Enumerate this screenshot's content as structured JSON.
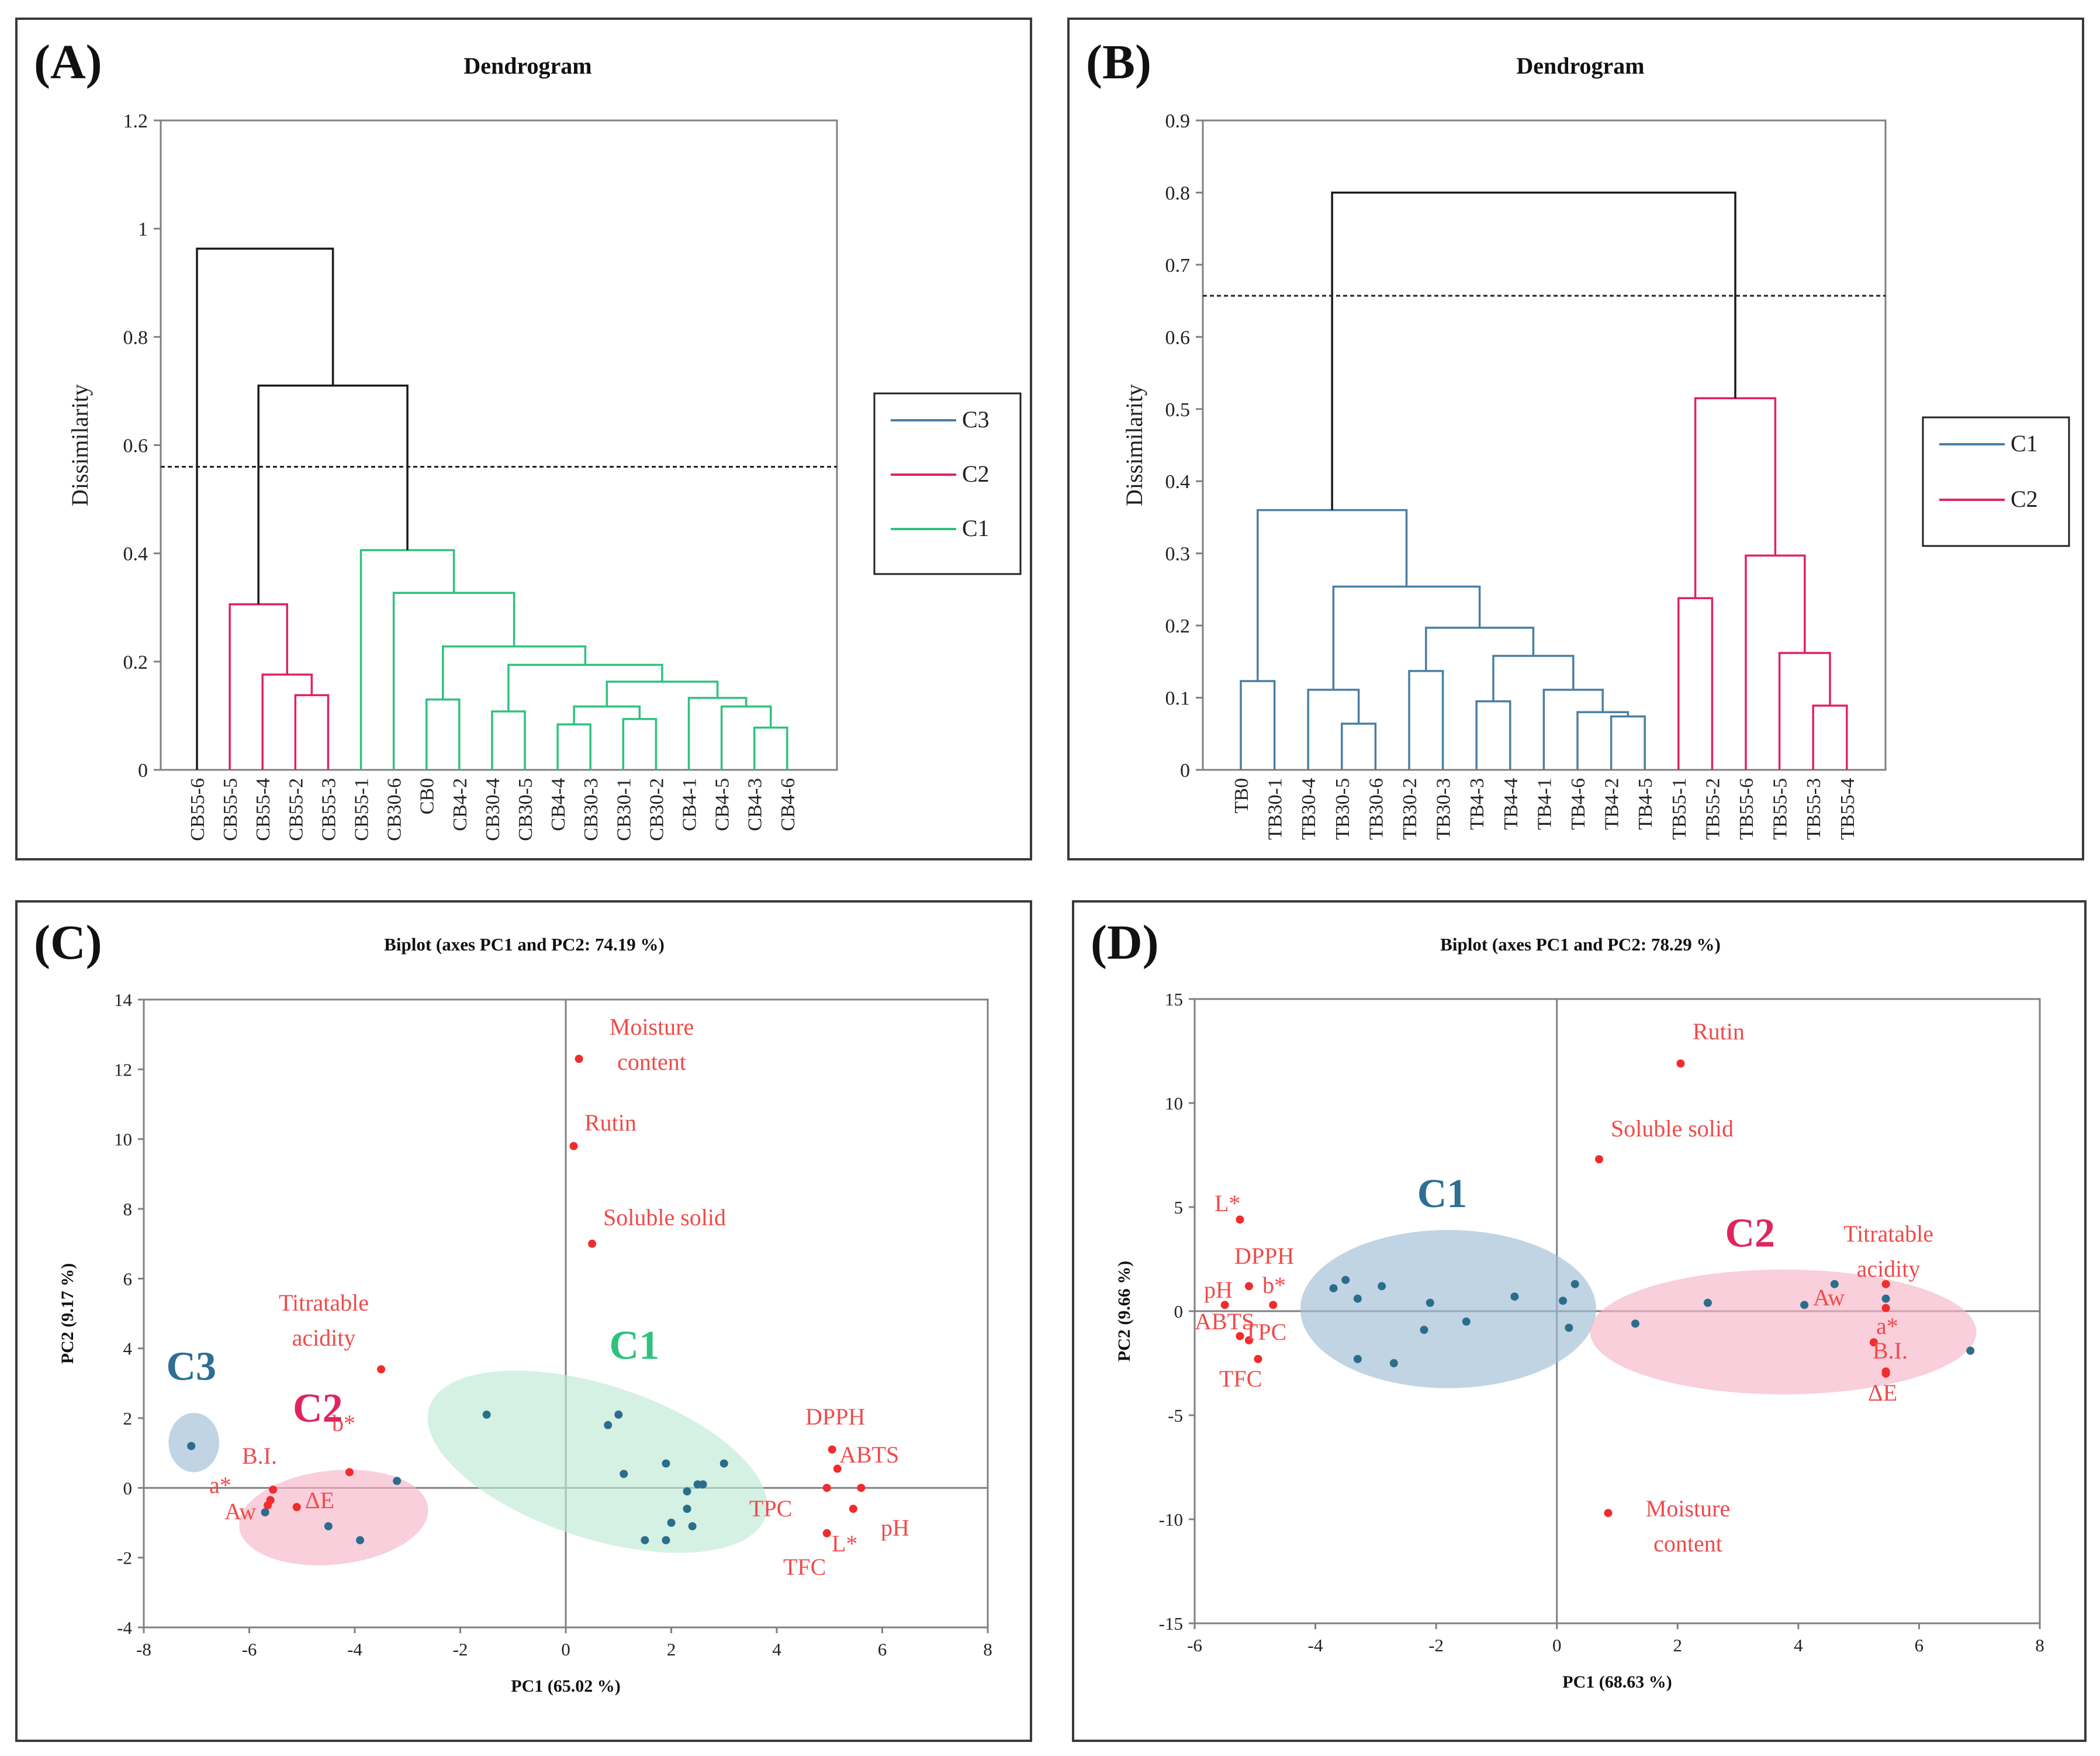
{
  "colors": {
    "axis": "#808080",
    "black": "#1a1a1a",
    "blue_cluster": "#4a7fa3",
    "pink_cluster": "#e0245e",
    "green_cluster": "#2ec27e",
    "point_obs": "#2a6e8c",
    "point_var": "#f02c2c",
    "var_label": "#f04a4a",
    "ellipse_blue": "#9fbdd4",
    "ellipse_pink": "#f4b6c7",
    "ellipse_green": "#bfe9d4",
    "label_C1_green": "#2ec27e",
    "label_C1_blue": "#2e6f93",
    "label_C2": "#e0245e",
    "label_C3": "#2e6f93"
  },
  "chart_data": [
    {
      "id": "A",
      "panel_label": "(A)",
      "type": "dendrogram",
      "title": "Dendrogram",
      "ylabel": "Dissimilarity",
      "ylim": [
        0,
        1.2
      ],
      "yticks": [
        "0",
        "0.2",
        "0.4",
        "0.6",
        "0.8",
        "1",
        "1.2"
      ],
      "ytick_values": [
        0,
        0.2,
        0.4,
        0.6,
        0.8,
        1.0,
        1.2
      ],
      "cut_height": 0.56,
      "leaves": [
        "CB55-6",
        "CB55-5",
        "CB55-4",
        "CB55-2",
        "CB55-3",
        "CB55-1",
        "CB30-6",
        "CB0",
        "CB4-2",
        "CB30-4",
        "CB30-5",
        "CB4-4",
        "CB30-3",
        "CB30-1",
        "CB30-2",
        "CB4-1",
        "CB4-5",
        "CB4-3",
        "CB4-6"
      ],
      "merges": [
        {
          "a": 17,
          "b": 18,
          "h": 0.078,
          "c": "green"
        },
        {
          "a": 16,
          "b": 19,
          "h": 0.117,
          "c": "green"
        },
        {
          "a": 15,
          "b": 20,
          "h": 0.133,
          "c": "green"
        },
        {
          "a": 13,
          "b": 14,
          "h": 0.094,
          "c": "green"
        },
        {
          "a": 11,
          "b": 12,
          "h": 0.084,
          "c": "green"
        },
        {
          "a": 23,
          "b": 22,
          "h": 0.117,
          "c": "green"
        },
        {
          "a": 24,
          "b": 21,
          "h": 0.163,
          "c": "green"
        },
        {
          "a": 9,
          "b": 10,
          "h": 0.108,
          "c": "green"
        },
        {
          "a": 26,
          "b": 25,
          "h": 0.194,
          "c": "green"
        },
        {
          "a": 7,
          "b": 8,
          "h": 0.13,
          "c": "green"
        },
        {
          "a": 28,
          "b": 27,
          "h": 0.228,
          "c": "green"
        },
        {
          "a": 6,
          "b": 29,
          "h": 0.327,
          "c": "green"
        },
        {
          "a": 5,
          "b": 30,
          "h": 0.406,
          "c": "green"
        },
        {
          "a": 3,
          "b": 4,
          "h": 0.138,
          "c": "pink"
        },
        {
          "a": 2,
          "b": 32,
          "h": 0.176,
          "c": "pink"
        },
        {
          "a": 1,
          "b": 33,
          "h": 0.306,
          "c": "pink"
        },
        {
          "a": 34,
          "b": 31,
          "h": 0.71,
          "c": "black"
        },
        {
          "a": 0,
          "b": 35,
          "h": 0.963,
          "c": "black"
        }
      ],
      "legend": [
        {
          "label": "C3",
          "color": "blue"
        },
        {
          "label": "C2",
          "color": "pink"
        },
        {
          "label": "C1",
          "color": "green"
        }
      ]
    },
    {
      "id": "B",
      "panel_label": "(B)",
      "type": "dendrogram",
      "title": "Dendrogram",
      "ylabel": "Dissimilarity",
      "ylim": [
        0,
        0.9
      ],
      "yticks": [
        "0",
        "0.1",
        "0.2",
        "0.3",
        "0.4",
        "0.5",
        "0.6",
        "0.7",
        "0.8",
        "0.9"
      ],
      "ytick_values": [
        0,
        0.1,
        0.2,
        0.3,
        0.4,
        0.5,
        0.6,
        0.7,
        0.8,
        0.9
      ],
      "cut_height": 0.657,
      "leaves": [
        "TB0",
        "TB30-1",
        "TB30-4",
        "TB30-5",
        "TB30-6",
        "TB30-2",
        "TB30-3",
        "TB4-3",
        "TB4-4",
        "TB4-1",
        "TB4-6",
        "TB4-2",
        "TB4-5",
        "TB55-1",
        "TB55-2",
        "TB55-6",
        "TB55-5",
        "TB55-3",
        "TB55-4"
      ],
      "merges": [
        {
          "a": 0,
          "b": 1,
          "h": 0.123,
          "c": "blue"
        },
        {
          "a": 3,
          "b": 4,
          "h": 0.064,
          "c": "blue"
        },
        {
          "a": 2,
          "b": 20,
          "h": 0.111,
          "c": "blue"
        },
        {
          "a": 5,
          "b": 6,
          "h": 0.137,
          "c": "blue"
        },
        {
          "a": 7,
          "b": 8,
          "h": 0.095,
          "c": "blue"
        },
        {
          "a": 11,
          "b": 12,
          "h": 0.074,
          "c": "blue"
        },
        {
          "a": 10,
          "b": 24,
          "h": 0.08,
          "c": "blue"
        },
        {
          "a": 9,
          "b": 25,
          "h": 0.111,
          "c": "blue"
        },
        {
          "a": 23,
          "b": 26,
          "h": 0.158,
          "c": "blue"
        },
        {
          "a": 22,
          "b": 27,
          "h": 0.197,
          "c": "blue"
        },
        {
          "a": 21,
          "b": 28,
          "h": 0.254,
          "c": "blue"
        },
        {
          "a": 19,
          "b": 29,
          "h": 0.36,
          "c": "blue"
        },
        {
          "a": 17,
          "b": 18,
          "h": 0.089,
          "c": "pink"
        },
        {
          "a": 16,
          "b": 31,
          "h": 0.162,
          "c": "pink"
        },
        {
          "a": 15,
          "b": 32,
          "h": 0.297,
          "c": "pink"
        },
        {
          "a": 13,
          "b": 14,
          "h": 0.238,
          "c": "pink"
        },
        {
          "a": 34,
          "b": 33,
          "h": 0.515,
          "c": "pink"
        },
        {
          "a": 30,
          "b": 35,
          "h": 0.8,
          "c": "black"
        }
      ],
      "legend": [
        {
          "label": "C1",
          "color": "blue"
        },
        {
          "label": "C2",
          "color": "pink"
        }
      ]
    },
    {
      "id": "C",
      "panel_label": "(C)",
      "type": "scatter",
      "title": "Biplot (axes PC1 and PC2: 74.19 %)",
      "xlabel": "PC1 (65.02 %)",
      "ylabel": "PC2 (9.17 %)",
      "xlim": [
        -8,
        8
      ],
      "ylim": [
        -4,
        14
      ],
      "xticks": [
        "-8",
        "-6",
        "-4",
        "-2",
        "0",
        "2",
        "4",
        "6",
        "8"
      ],
      "xtick_values": [
        -8,
        -6,
        -4,
        -2,
        0,
        2,
        4,
        6,
        8
      ],
      "yticks": [
        "-4",
        "-2",
        "0",
        "2",
        "4",
        "6",
        "8",
        "10",
        "12",
        "14"
      ],
      "ytick_values": [
        -4,
        -2,
        0,
        2,
        4,
        6,
        8,
        10,
        12,
        14
      ],
      "observations": [
        [
          -7.1,
          1.2
        ],
        [
          -5.7,
          -0.7
        ],
        [
          -4.5,
          -1.1
        ],
        [
          -3.9,
          -1.5
        ],
        [
          -3.2,
          0.2
        ],
        [
          -1.5,
          2.1
        ],
        [
          0.8,
          1.8
        ],
        [
          1.0,
          2.1
        ],
        [
          1.1,
          0.4
        ],
        [
          1.9,
          0.7
        ],
        [
          2.0,
          -1.0
        ],
        [
          2.3,
          -0.1
        ],
        [
          2.3,
          -0.6
        ],
        [
          2.4,
          -1.1
        ],
        [
          2.5,
          0.1
        ],
        [
          2.6,
          0.1
        ],
        [
          1.5,
          -1.5
        ],
        [
          1.9,
          -1.5
        ],
        [
          3.0,
          0.7
        ]
      ],
      "variables": [
        {
          "name": "Moisture content",
          "x": 0.25,
          "y": 12.3
        },
        {
          "name": "Rutin",
          "x": 0.15,
          "y": 9.8
        },
        {
          "name": "Soluble solid",
          "x": 0.5,
          "y": 7.0
        },
        {
          "name": "Titratable acidity",
          "x": -3.5,
          "y": 3.4
        },
        {
          "name": "b*",
          "x": -4.1,
          "y": 0.45
        },
        {
          "name": "B.I.",
          "x": -5.55,
          "y": -0.05
        },
        {
          "name": "a*",
          "x": -5.65,
          "y": -0.5
        },
        {
          "name": "Aw",
          "x": -5.6,
          "y": -0.35
        },
        {
          "name": "ΔE",
          "x": -5.1,
          "y": -0.55
        },
        {
          "name": "DPPH",
          "x": 5.05,
          "y": 1.1
        },
        {
          "name": "ABTS",
          "x": 5.15,
          "y": 0.55
        },
        {
          "name": "TPC",
          "x": 4.95,
          "y": 0.0
        },
        {
          "name": "pH",
          "x": 5.6,
          "y": 0.0
        },
        {
          "name": "L*",
          "x": 5.45,
          "y": -0.6
        },
        {
          "name": "TFC",
          "x": 4.95,
          "y": -1.3
        }
      ],
      "clusters": [
        {
          "label": "C1",
          "x": 1.3,
          "y": 3.7,
          "color": "green"
        },
        {
          "label": "C2",
          "x": -4.7,
          "y": 1.9,
          "color": "pink"
        },
        {
          "label": "C3",
          "x": -7.1,
          "y": 3.1,
          "color": "blue"
        }
      ]
    },
    {
      "id": "D",
      "panel_label": "(D)",
      "type": "scatter",
      "title": "Biplot (axes PC1 and PC2: 78.29 %)",
      "xlabel": "PC1 (68.63 %)",
      "ylabel": "PC2 (9.66 %)",
      "xlim": [
        -6,
        8
      ],
      "ylim": [
        -15,
        15
      ],
      "xticks": [
        "-6",
        "-4",
        "-2",
        "0",
        "2",
        "4",
        "6",
        "8"
      ],
      "xtick_values": [
        -6,
        -4,
        -2,
        0,
        2,
        4,
        6,
        8
      ],
      "yticks": [
        "-15",
        "-10",
        "-5",
        "0",
        "5",
        "10",
        "15"
      ],
      "ytick_values": [
        -15,
        -10,
        -5,
        0,
        5,
        10,
        15
      ],
      "observations": [
        [
          -3.7,
          1.1
        ],
        [
          -3.5,
          1.5
        ],
        [
          -3.3,
          0.6
        ],
        [
          -2.9,
          1.2
        ],
        [
          -3.3,
          -2.3
        ],
        [
          -2.7,
          -2.5
        ],
        [
          -2.2,
          -0.9
        ],
        [
          -2.1,
          0.4
        ],
        [
          -1.5,
          -0.5
        ],
        [
          -0.7,
          0.7
        ],
        [
          0.1,
          0.5
        ],
        [
          0.2,
          -0.8
        ],
        [
          0.3,
          1.3
        ],
        [
          1.3,
          -0.6
        ],
        [
          2.5,
          0.4
        ],
        [
          4.1,
          0.3
        ],
        [
          4.6,
          1.3
        ],
        [
          5.45,
          0.6
        ],
        [
          6.85,
          -1.9
        ]
      ],
      "variables": [
        {
          "name": "Rutin",
          "x": 2.05,
          "y": 11.9
        },
        {
          "name": "Soluble solid",
          "x": 0.7,
          "y": 7.3
        },
        {
          "name": "L*",
          "x": -5.25,
          "y": 4.4
        },
        {
          "name": "DPPH",
          "x": -5.1,
          "y": 1.2
        },
        {
          "name": "pH",
          "x": -5.5,
          "y": 0.3
        },
        {
          "name": "b*",
          "x": -4.7,
          "y": 0.3
        },
        {
          "name": "ABTS",
          "x": -5.25,
          "y": -1.2
        },
        {
          "name": "TPC",
          "x": -5.1,
          "y": -1.4
        },
        {
          "name": "TFC",
          "x": -4.95,
          "y": -2.3
        },
        {
          "name": "Moisture content",
          "x": 0.85,
          "y": -9.7
        },
        {
          "name": "Titratable acidity",
          "x": 5.45,
          "y": 1.3
        },
        {
          "name": "Aw",
          "x": 5.45,
          "y": 0.15
        },
        {
          "name": "a*",
          "x": 5.25,
          "y": -1.5
        },
        {
          "name": "B.I.",
          "x": 5.45,
          "y": -2.9
        },
        {
          "name": "ΔE",
          "x": 5.45,
          "y": -3.0
        }
      ],
      "clusters": [
        {
          "label": "C1",
          "x": -1.9,
          "y": 5.0,
          "color": "blueDark"
        },
        {
          "label": "C2",
          "x": 3.2,
          "y": 3.1,
          "color": "pink"
        }
      ]
    }
  ]
}
